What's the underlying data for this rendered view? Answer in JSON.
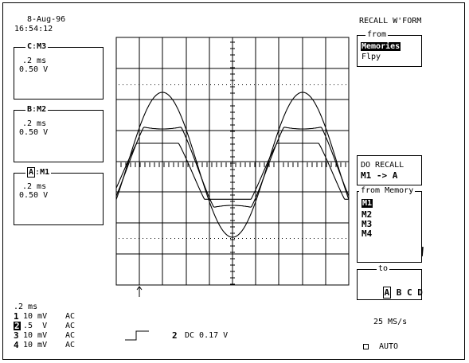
{
  "header": {
    "date": "8-Aug-96",
    "time": "16:54:12"
  },
  "traces": [
    {
      "id": "C",
      "mem": "M3",
      "timebase": ".2 ms",
      "volts": "0.50 V"
    },
    {
      "id": "B",
      "mem": "M2",
      "timebase": ".2 ms",
      "volts": "0.50 V"
    },
    {
      "id": "A",
      "mem": "M1",
      "timebase": ".2 ms",
      "volts": "0.50 V"
    }
  ],
  "bottom": {
    "timebase": ".2 ms",
    "channels": [
      {
        "num": "1",
        "scale": "10 mV",
        "coupling": "AC"
      },
      {
        "num": "2",
        "scale": ".5  V",
        "coupling": "AC"
      },
      {
        "num": "3",
        "scale": "10 mV",
        "coupling": "AC"
      },
      {
        "num": "4",
        "scale": "10 mV",
        "coupling": "AC"
      }
    ],
    "trigger_channel": "2",
    "trigger_info": "DC 0.17 V",
    "sample_rate": "25 MS/s",
    "auto_label": "AUTO"
  },
  "menu": {
    "title": "RECALL W'FORM",
    "from_legend": "from",
    "from_options": [
      "Memories",
      "Flpy"
    ],
    "do_recall_label": "DO RECALL",
    "do_recall_value": "M1 -> A",
    "from_memory_legend": "from Memory",
    "memories": [
      "M1",
      "M2",
      "M3",
      "M4"
    ],
    "to_legend": "to",
    "to_options": [
      "A",
      "B",
      "C",
      "D"
    ]
  },
  "colors": {
    "foreground": "#000000",
    "background": "#ffffff"
  }
}
